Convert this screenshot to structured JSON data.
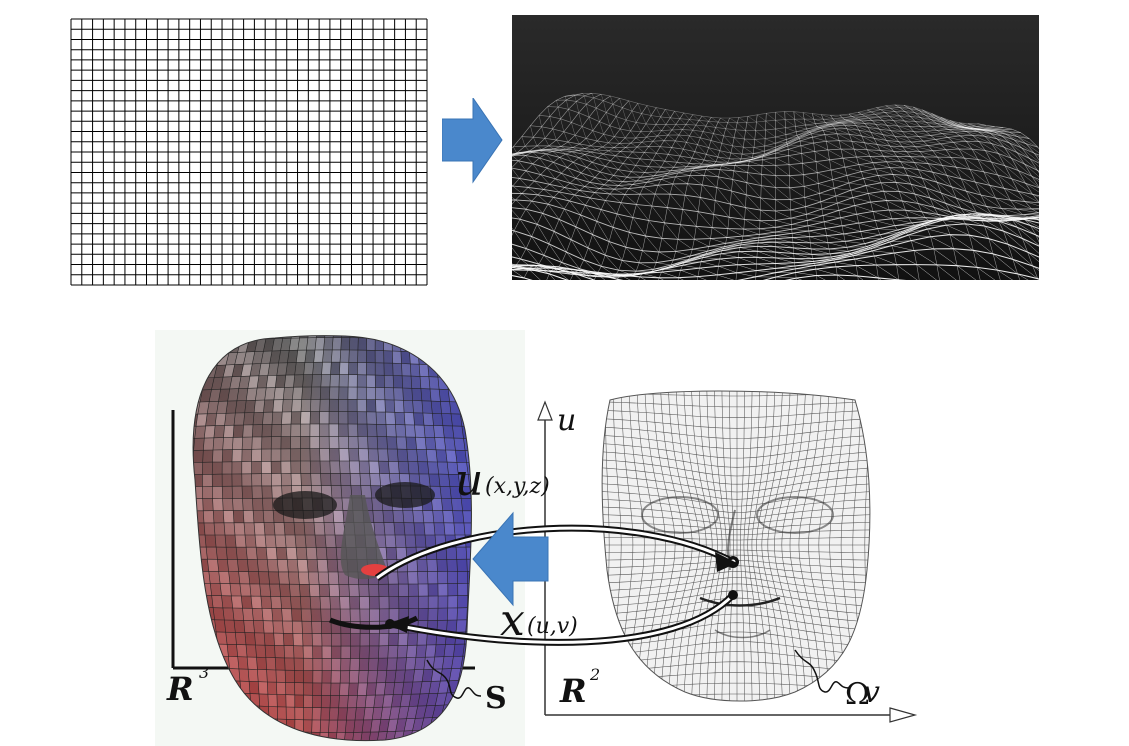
{
  "top_row": {
    "flat_grid": {
      "rows": 26,
      "cols": 33,
      "line_color": "#000000"
    },
    "arrow": {
      "color": "#4a88cc"
    },
    "terrain": {
      "background_color": "#111111",
      "mesh_color": "#ffffff"
    }
  },
  "bottom_panel": {
    "labels": {
      "axis_u": "u",
      "axis_v": "v",
      "map_u": "u",
      "map_u_args": "(x,y,z)",
      "map_x": "x",
      "map_x_args": "(u,v)",
      "space_3d": "R",
      "space_3d_exp": "3",
      "space_2d": "R",
      "space_2d_exp": "2",
      "surface": "S",
      "domain": "Ω"
    },
    "colors": {
      "face_dark": "#3c3c3c",
      "face_light": "#e6e6e6",
      "red_tint": "#d03838",
      "blue_tint": "#3a3ad8",
      "arrow": "#4a88cc",
      "flat_mesh": "#f0f0f0"
    }
  }
}
